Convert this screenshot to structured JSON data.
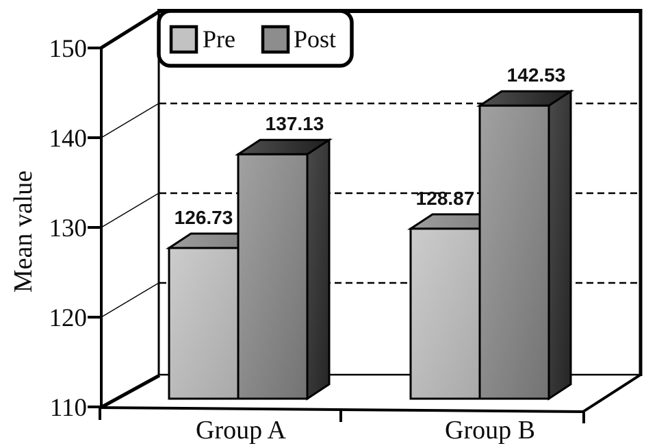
{
  "chart_data": {
    "type": "bar",
    "projection": "3d",
    "title": "",
    "ylabel": "Mean value",
    "xlabel": "",
    "categories": [
      "Group A",
      "Group B"
    ],
    "series": [
      {
        "name": "Pre",
        "values": [
          126.73,
          128.87
        ],
        "labels": [
          "126.73",
          "128.87"
        ]
      },
      {
        "name": "Post",
        "values": [
          137.13,
          142.53
        ],
        "labels": [
          "137.13",
          "142.53"
        ]
      }
    ],
    "ylim": [
      110,
      150
    ],
    "yticks": [
      110,
      120,
      130,
      140,
      150
    ],
    "grid": "dashed-horizontal-at-inner-ticks",
    "legend_position": "top-left",
    "colors": {
      "pre_fill": "#c2c2c2",
      "post_fill": "#8d8d8d",
      "outline": "#000000",
      "background": "#ffffff"
    }
  }
}
